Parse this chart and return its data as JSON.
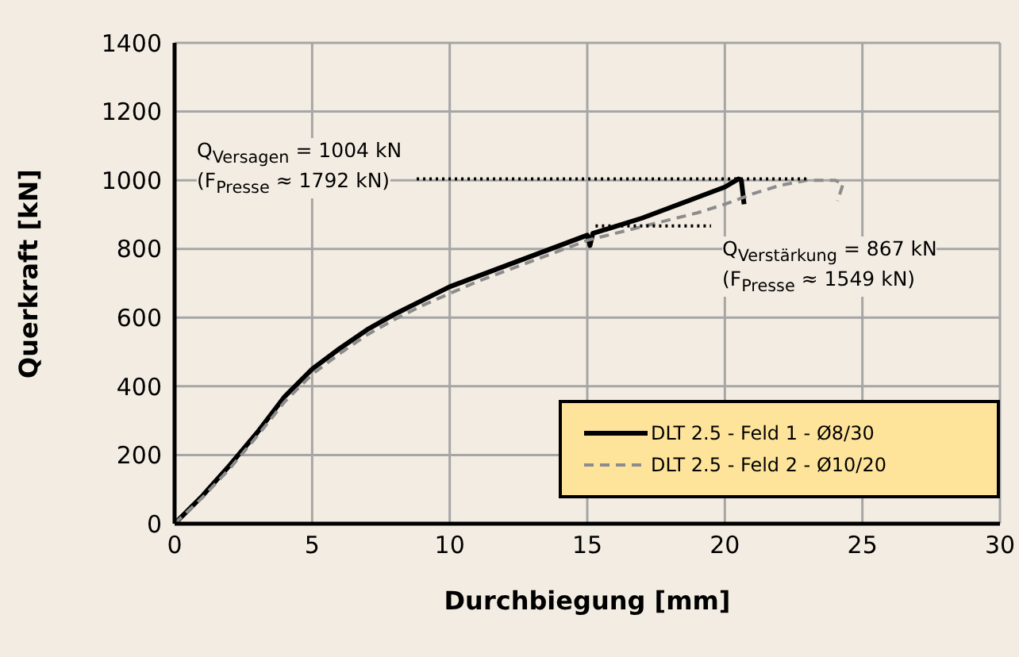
{
  "chart_data": {
    "type": "line",
    "xlabel": "Durchbiegung [mm]",
    "ylabel": "Querkraft [kN]",
    "xlim": [
      0,
      30
    ],
    "xticks": [
      0,
      5,
      10,
      15,
      20,
      25,
      30
    ],
    "ylim": [
      0,
      1400
    ],
    "yticks": [
      0,
      200,
      400,
      600,
      800,
      1000,
      1200,
      1400
    ],
    "grid": true,
    "legend": "bottom right",
    "marker": "none",
    "series": [
      {
        "name": "DLT 2.5 - Feld 1 - Ø8/30",
        "color": "#000000",
        "line_style": "solid",
        "x": [
          0,
          1,
          2,
          3,
          4,
          5,
          6,
          7,
          8,
          9,
          10,
          11,
          12,
          13,
          14,
          15,
          15.1,
          15.2,
          16,
          17,
          18,
          19,
          20,
          20.5,
          20.6,
          20.7
        ],
        "values": [
          0,
          80,
          170,
          265,
          370,
          450,
          510,
          565,
          610,
          650,
          690,
          720,
          750,
          780,
          810,
          840,
          810,
          845,
          865,
          890,
          920,
          950,
          980,
          1004,
          1000,
          930
        ]
      },
      {
        "name": "DLT 2.5 - Feld 2 - Ø10/20",
        "color": "#8c8c8c",
        "line_style": "dashed",
        "x": [
          0,
          1,
          2,
          3,
          4,
          5,
          6,
          7,
          8,
          9,
          10,
          11,
          12,
          13,
          14,
          15,
          16,
          17,
          18,
          19,
          20,
          21,
          22,
          23,
          24,
          24.3,
          24.1
        ],
        "values": [
          0,
          75,
          160,
          255,
          355,
          435,
          495,
          550,
          595,
          635,
          670,
          705,
          735,
          765,
          795,
          825,
          845,
          865,
          885,
          905,
          930,
          960,
          985,
          1000,
          1000,
          990,
          940
        ]
      },
      {
        "color": "#000000",
        "line_style": "dotted",
        "x": [
          8.8,
          23
        ],
        "values": [
          1004,
          1004
        ]
      },
      {
        "color": "#000000",
        "line_style": "dotted",
        "x": [
          15.3,
          19.5
        ],
        "values": [
          867,
          867
        ]
      }
    ],
    "annotations": [
      "Q$_{Versagen}$ = 1004 kN",
      "(F$_{Presse}$ ≈ 1792 kN)",
      "Q$_{Verstärkung}$ = 867 kN",
      "(F$_{Presse}$ ≈ 1549 kN)"
    ]
  }
}
